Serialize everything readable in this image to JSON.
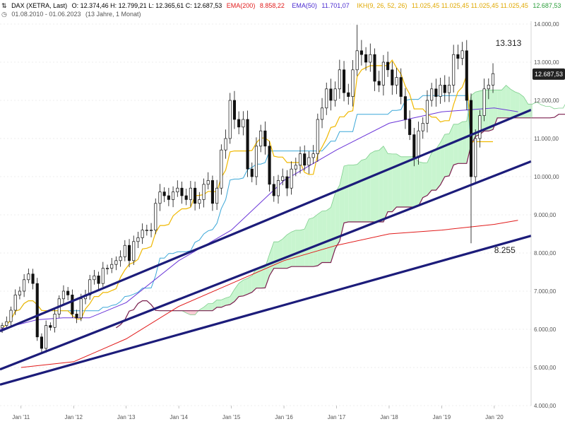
{
  "header": {
    "icon_label": "⇅",
    "instrument": "DAX (XETRA, Last)",
    "ohlc": "O: 12.374,46  H: 12.799,21  L: 12.365,61  C: 12.687,53",
    "ind1_name": "EMA(200)",
    "ind1_value": "8.858,22",
    "ind2_name": "EMA(50)",
    "ind2_value": "11.701,07",
    "ind3_name": "IKH(9, 26, 52, 26)",
    "ind3_values": "11.025,45  11.025,45  11.025,45  11.025,45",
    "ind3_last": "12.687,53",
    "range_icon": "clock-icon",
    "range": "01.08.2010 - 01.06.2023",
    "range_detail": "(13 Jahre, 1 Monat)"
  },
  "colors": {
    "candle": "#111111",
    "ema200": "#e11b1b",
    "ema50": "#6a35d8",
    "tenkan": "#f0b800",
    "kijun": "#3ba7d8",
    "senkou_b": "#7b1e4e",
    "cloud_bull": "#c8f5cf",
    "cloud_bear": "#f8cdd5",
    "trend": "#1c1c7a",
    "grid": "#dddddd"
  },
  "chart_data": {
    "type": "candlestick",
    "y_range": [
      4000,
      14000
    ],
    "y_ticks": [
      "14.000,00",
      "13.000,00",
      "12.000,00",
      "11.000,00",
      "10.000,00",
      "9.000,00",
      "8.000,00",
      "7.000,00",
      "6.000,00",
      "5.000,00",
      "4.000,00"
    ],
    "x_range": [
      2010.6,
      2020.7
    ],
    "x_ticks": [
      {
        "label": "Jan '11",
        "x": 2011.0
      },
      {
        "label": "Jan '12",
        "x": 2012.0
      },
      {
        "label": "Jan '13",
        "x": 2013.0
      },
      {
        "label": "Jan '14",
        "x": 2014.0
      },
      {
        "label": "Jan '15",
        "x": 2015.0
      },
      {
        "label": "Jan '16",
        "x": 2016.0
      },
      {
        "label": "Jan '17",
        "x": 2017.0
      },
      {
        "label": "Jan '18",
        "x": 2018.0
      },
      {
        "label": "Jan '19",
        "x": 2019.0
      },
      {
        "label": "Jan '20",
        "x": 2020.0
      }
    ],
    "close": [
      6100,
      6200,
      6500,
      6900,
      7000,
      7300,
      7450,
      7200,
      5800,
      5500,
      6100,
      6050,
      6400,
      6800,
      7000,
      6900,
      6400,
      6300,
      6800,
      6900,
      7300,
      7400,
      7200,
      7600,
      7600,
      7700,
      7800,
      7900,
      8200,
      7800,
      8300,
      8400,
      8600,
      8600,
      8600,
      9300,
      9600,
      9500,
      9400,
      9600,
      9700,
      9500,
      9400,
      9700,
      9300,
      9400,
      9800,
      9900,
      9300,
      9700,
      10700,
      11000,
      12000,
      11500,
      11300,
      11500,
      10200,
      10000,
      10800,
      11200,
      10800,
      9800,
      9500,
      9900,
      10000,
      9700,
      10200,
      10300,
      10600,
      10300,
      10500,
      10600,
      11500,
      11800,
      12300,
      12000,
      12300,
      12800,
      12200,
      12100,
      12800,
      13300,
      13200,
      13000,
      13200,
      12500,
      12400,
      13000,
      12800,
      12400,
      12600,
      12100,
      11500,
      11100,
      10500,
      11200,
      11400,
      12000,
      12300,
      12100,
      12400,
      12200,
      12400,
      13200,
      13100,
      13300,
      12000,
      10000,
      11000,
      11600,
      12300,
      12400,
      12700
    ],
    "open_shift": 1,
    "ema200": [
      [
        2011.0,
        5000
      ],
      [
        2012.0,
        5150
      ],
      [
        2013.0,
        5750
      ],
      [
        2014.0,
        6600
      ],
      [
        2015.0,
        7200
      ],
      [
        2016.0,
        7800
      ],
      [
        2017.0,
        8200
      ],
      [
        2018.0,
        8500
      ],
      [
        2019.0,
        8600
      ],
      [
        2020.0,
        8750
      ],
      [
        2020.45,
        8858.22
      ]
    ],
    "ema50": [
      [
        2010.6,
        6000
      ],
      [
        2011.3,
        6250
      ],
      [
        2011.8,
        6300
      ],
      [
        2012.3,
        6300
      ],
      [
        2013.0,
        6700
      ],
      [
        2014.0,
        7800
      ],
      [
        2015.0,
        8600
      ],
      [
        2016.0,
        9900
      ],
      [
        2017.0,
        10700
      ],
      [
        2018.0,
        11400
      ],
      [
        2019.0,
        11700
      ],
      [
        2020.0,
        11800
      ],
      [
        2020.45,
        11701.07
      ]
    ],
    "annotations": [
      {
        "label": "13.313",
        "x": 2020.27,
        "y": 13313
      },
      {
        "label": "8.255",
        "x": 2020.2,
        "y": 8255
      }
    ],
    "last_price_label": "12.687,53",
    "last_price_value": 12687.53,
    "trendlines": [
      [
        [
          2010.6,
          5950
        ],
        [
          2020.7,
          11750
        ]
      ],
      [
        [
          2010.6,
          4950
        ],
        [
          2020.7,
          10400
        ]
      ],
      [
        [
          2010.6,
          4550
        ],
        [
          2020.7,
          8450
        ]
      ]
    ]
  }
}
